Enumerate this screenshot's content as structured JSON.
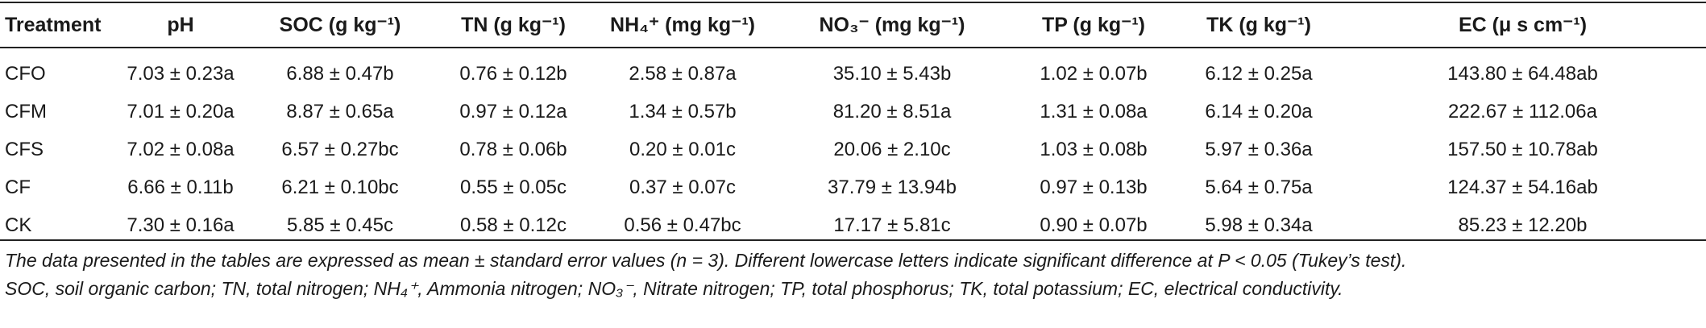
{
  "headers": [
    "Treatment",
    "pH",
    "SOC (g kg⁻¹)",
    "TN (g kg⁻¹)",
    "NH₄⁺ (mg kg⁻¹)",
    "NO₃⁻ (mg kg⁻¹)",
    "TP (g kg⁻¹)",
    "TK (g kg⁻¹)",
    "EC (μ s cm⁻¹)"
  ],
  "rows": [
    [
      "CFO",
      "7.03 ± 0.23a",
      "6.88 ± 0.47b",
      "0.76 ± 0.12b",
      "2.58 ± 0.87a",
      "35.10 ± 5.43b",
      "1.02 ± 0.07b",
      "6.12 ± 0.25a",
      "143.80 ± 64.48ab"
    ],
    [
      "CFM",
      "7.01 ± 0.20a",
      "8.87 ± 0.65a",
      "0.97 ± 0.12a",
      "1.34 ± 0.57b",
      "81.20 ± 8.51a",
      "1.31 ± 0.08a",
      "6.14 ± 0.20a",
      "222.67 ± 112.06a"
    ],
    [
      "CFS",
      "7.02 ± 0.08a",
      "6.57 ± 0.27bc",
      "0.78 ± 0.06b",
      "0.20 ± 0.01c",
      "20.06 ± 2.10c",
      "1.03 ± 0.08b",
      "5.97 ± 0.36a",
      "157.50 ± 10.78ab"
    ],
    [
      "CF",
      "6.66 ± 0.11b",
      "6.21 ± 0.10bc",
      "0.55 ± 0.05c",
      "0.37 ± 0.07c",
      "37.79 ± 13.94b",
      "0.97 ± 0.13b",
      "5.64 ± 0.75a",
      "124.37 ± 54.16ab"
    ],
    [
      "CK",
      "7.30 ± 0.16a",
      "5.85 ± 0.45c",
      "0.58 ± 0.12c",
      "0.56 ± 0.47bc",
      "17.17 ± 5.81c",
      "0.90 ± 0.07b",
      "5.98 ± 0.34a",
      "85.23 ± 12.20b"
    ]
  ],
  "footnote": [
    "The data presented in the tables are expressed as mean ± standard error values (n = 3). Different lowercase letters indicate significant difference at P < 0.05 (Tukey’s test).",
    "SOC, soil organic carbon; TN, total nitrogen; NH₄⁺, Ammonia nitrogen; NO₃⁻, Nitrate nitrogen; TP, total phosphorus; TK, total potassium; EC, electrical conductivity."
  ]
}
